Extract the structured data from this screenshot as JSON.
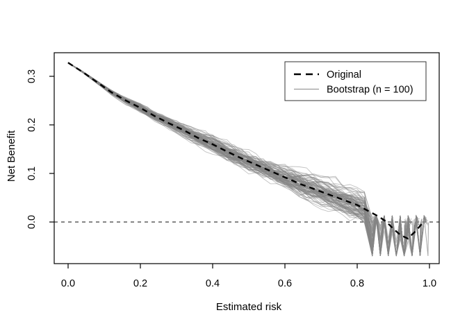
{
  "chart_data": {
    "type": "line",
    "title": "",
    "xlabel": "Estimated risk",
    "ylabel": "Net Benefit",
    "xlim": [
      -0.04,
      1.03
    ],
    "ylim": [
      -0.088,
      0.349
    ],
    "grid": false,
    "xticks": {
      "values": [
        0,
        0.2,
        0.4,
        0.6,
        0.8,
        1.0
      ],
      "labels": [
        "0.0",
        "0.2",
        "0.4",
        "0.6",
        "0.8",
        "1.0"
      ]
    },
    "yticks": {
      "values": [
        0,
        0.1,
        0.2,
        0.3
      ],
      "labels": [
        "0.0",
        "0.1",
        "0.2",
        "0.3"
      ]
    },
    "reference_line": {
      "y": 0,
      "style": "dashed",
      "color": "#3c3c3c"
    },
    "legend": {
      "position": "top-right",
      "items": [
        {
          "label": "Original",
          "style": "dashed",
          "color": "#000000",
          "width": 2.6
        },
        {
          "label": "Bootstrap (n = 100)",
          "style": "solid",
          "color": "#9a9a9a",
          "width": 1.2
        }
      ]
    },
    "series": [
      {
        "name": "Original",
        "style": "dashed",
        "color": "#000000",
        "x": [
          0.0,
          0.04,
          0.08,
          0.12,
          0.16,
          0.2,
          0.24,
          0.28,
          0.32,
          0.36,
          0.4,
          0.44,
          0.48,
          0.52,
          0.56,
          0.6,
          0.64,
          0.68,
          0.72,
          0.76,
          0.8,
          0.83,
          0.86,
          0.88,
          0.9,
          0.92,
          0.94,
          0.96,
          0.98
        ],
        "y": [
          0.328,
          0.309,
          0.288,
          0.267,
          0.25,
          0.235,
          0.218,
          0.203,
          0.189,
          0.173,
          0.16,
          0.145,
          0.131,
          0.118,
          0.105,
          0.092,
          0.079,
          0.068,
          0.057,
          0.046,
          0.035,
          0.023,
          0.011,
          0.001,
          -0.014,
          -0.027,
          -0.034,
          -0.02,
          -0.003
        ]
      },
      {
        "name": "Bootstrap",
        "n": 100,
        "style": "solid",
        "color": "#868686",
        "opacity": 0.5,
        "band_halfwidth": {
          "x": [
            0,
            0.1,
            0.2,
            0.3,
            0.4,
            0.5,
            0.6,
            0.7,
            0.8
          ],
          "hw": [
            0.001,
            0.005,
            0.01,
            0.014,
            0.018,
            0.022,
            0.025,
            0.028,
            0.03
          ]
        },
        "tail": {
          "zigzag_start": 0.83,
          "min": -0.07,
          "max": 0.013,
          "end_range": [
            0.93,
            1.0
          ]
        },
        "description": "100 bootstrap decision curves tightly hugging the original curve, spreading wider with x and breaking into sharp zigzag dips toward -0.07 beyond x ≈ 0.83, terminating near 0 around x ≈ 0.93–1.0"
      }
    ],
    "colors": {
      "axis": "#000000",
      "background": "#ffffff"
    }
  }
}
